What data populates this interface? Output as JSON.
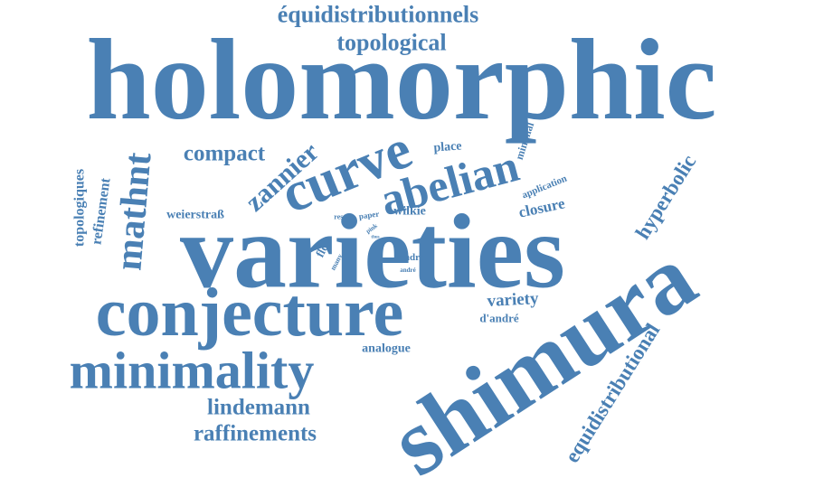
{
  "accent_color": "#4a80b4",
  "words": [
    {
      "text": "holomorphic"
    },
    {
      "text": "varieties"
    },
    {
      "text": "shimura"
    },
    {
      "text": "conjecture"
    },
    {
      "text": "minimality"
    },
    {
      "text": "curve"
    },
    {
      "text": "abelian"
    },
    {
      "text": "mathnt"
    },
    {
      "text": "zannier"
    },
    {
      "text": "équidistributionnels"
    },
    {
      "text": "topological"
    },
    {
      "text": "compact"
    },
    {
      "text": "hyperbolic"
    },
    {
      "text": "equidistributional"
    },
    {
      "text": "lindemann"
    },
    {
      "text": "raffinements"
    },
    {
      "text": "topologiques"
    },
    {
      "text": "refinement"
    },
    {
      "text": "variety"
    },
    {
      "text": "closure"
    },
    {
      "text": "weierstraß"
    },
    {
      "text": "wilkie"
    },
    {
      "text": "analogue"
    },
    {
      "text": "d'andré"
    },
    {
      "text": "place"
    },
    {
      "text": "minimal"
    },
    {
      "text": "application"
    },
    {
      "text": "flow"
    },
    {
      "text": "many"
    },
    {
      "text": "result"
    },
    {
      "text": "paper"
    },
    {
      "text": "pink"
    },
    {
      "text": "andre"
    },
    {
      "text": "andré"
    },
    {
      "text": "thus"
    }
  ]
}
